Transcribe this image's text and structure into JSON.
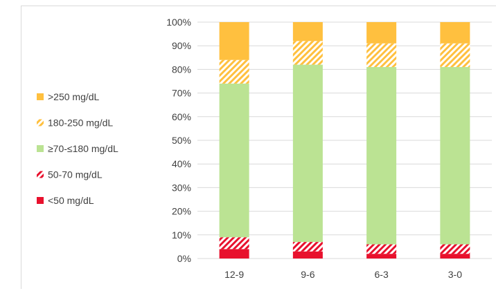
{
  "chart_data": {
    "type": "bar",
    "stacked": true,
    "normalized": true,
    "categories": [
      "12-9",
      "9-6",
      "6-3",
      "3-0"
    ],
    "y_ticks": [
      "0%",
      "10%",
      "20%",
      "30%",
      "40%",
      "50%",
      "60%",
      "70%",
      "80%",
      "90%",
      "100%"
    ],
    "ylim": [
      0,
      100
    ],
    "title": "",
    "xlabel": "",
    "ylabel": "",
    "grid": true,
    "legend_position": "left",
    "series": [
      {
        "name": "<50 mg/dL",
        "values": [
          4,
          3,
          2,
          2
        ],
        "color": "#e8112d",
        "pattern": "solid"
      },
      {
        "name": "50-70 mg/dL",
        "values": [
          5,
          4,
          4,
          4
        ],
        "color": "#e8112d",
        "pattern": "hatch"
      },
      {
        "name": "≥70-≤180 mg/dL",
        "values": [
          65,
          75,
          75,
          75
        ],
        "color": "#bbe393",
        "pattern": "solid"
      },
      {
        "name": "180-250 mg/dL",
        "values": [
          10,
          10,
          10,
          10
        ],
        "color": "#ffc03f",
        "pattern": "hatch"
      },
      {
        "name": ">250 mg/dL",
        "values": [
          16,
          8,
          9,
          9
        ],
        "color": "#ffc03f",
        "pattern": "solid"
      }
    ]
  }
}
